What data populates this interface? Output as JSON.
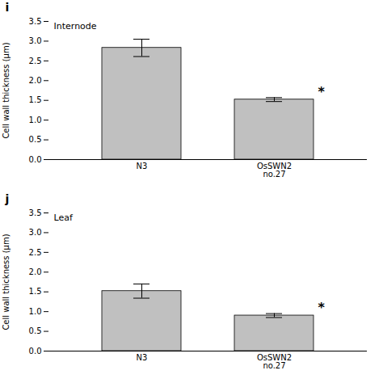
{
  "chart_data": [
    {
      "type": "bar",
      "title": "Internode",
      "panel_label": "i",
      "categories": [
        "N3",
        "OsSWN2\nno.27"
      ],
      "values": [
        2.83,
        1.52
      ],
      "errors": [
        0.22,
        0.05
      ],
      "color": "#c0c0c0",
      "ylabel": "Cell wall thickness (μm)",
      "ylim": [
        0,
        3.5
      ],
      "yticks": [
        {
          "value": 0,
          "label": "0.0"
        },
        0.5,
        {
          "value": 1.0,
          "label": "1.0"
        },
        1.5,
        {
          "value": 2.0,
          "label": "2.0"
        },
        2.5,
        {
          "value": 3.0,
          "label": "3.0"
        },
        3.5
      ],
      "annotations": [
        {
          "text": "*",
          "category": "OsSWN2\nno.27"
        }
      ]
    },
    {
      "type": "bar",
      "title": "Leaf",
      "panel_label": "j",
      "categories": [
        "N3",
        "OsSWN2\nno.27"
      ],
      "values": [
        1.52,
        0.9
      ],
      "errors": [
        0.18,
        0.05
      ],
      "color": "#c0c0c0",
      "ylabel": "Cell wall thickness (μm)",
      "ylim": [
        0,
        3.5
      ],
      "yticks": [
        {
          "value": 0,
          "label": "0.0"
        },
        0.5,
        {
          "value": 1.0,
          "label": "1.0"
        },
        1.5,
        {
          "value": 2.0,
          "label": "2.0"
        },
        2.5,
        {
          "value": 3.0,
          "label": "3.0"
        },
        3.5
      ],
      "annotations": [
        {
          "text": "*",
          "category": "OsSWN2\nno.27"
        }
      ]
    }
  ]
}
